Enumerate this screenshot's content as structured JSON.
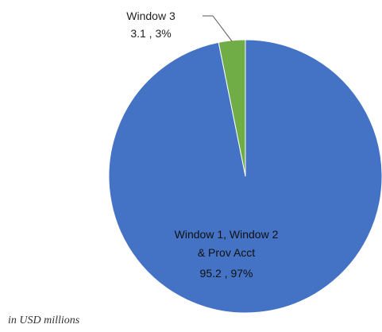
{
  "chart_data": {
    "type": "pie",
    "categories": [
      "Window 1, Window 2 & Prov Acct",
      "Window 3"
    ],
    "values": [
      95.2,
      3.1
    ],
    "percent_labels": [
      "97%",
      "3%"
    ],
    "colors": [
      "#4472C4",
      "#70AD47"
    ],
    "slices": [
      {
        "name_lines": [
          "Window 1, Window 2",
          "& Prov Acct"
        ],
        "value_label": "95.2 , 97%"
      },
      {
        "name_lines": [
          "Window 3"
        ],
        "value_label": "3.1 , 3%"
      }
    ],
    "note": "in USD millions",
    "legend": "none"
  }
}
